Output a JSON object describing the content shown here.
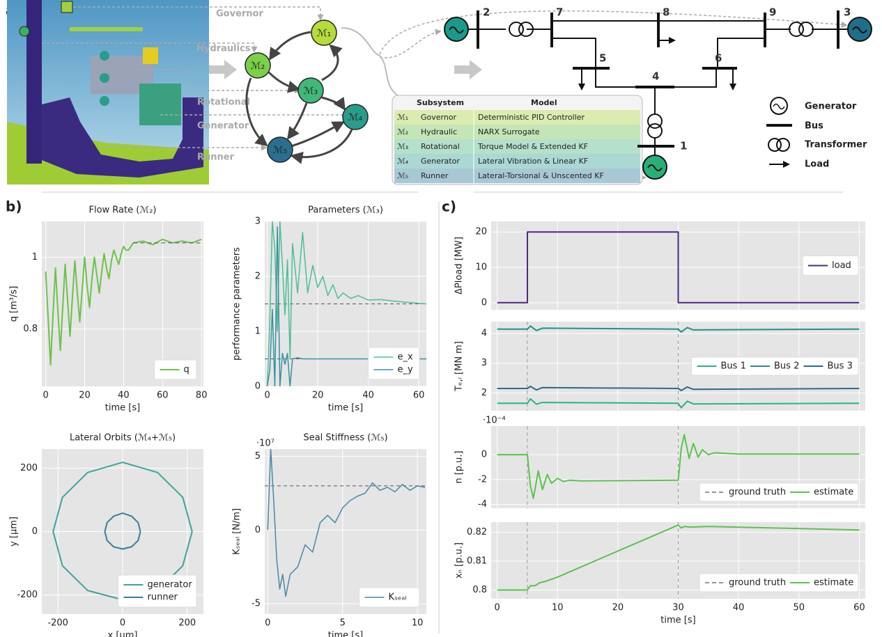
{
  "panel_labels": [
    "a)",
    "b)",
    "c)"
  ],
  "diagram": {
    "subsystem_labels": [
      "Governor",
      "Hydraulics",
      "Rotational",
      "Generator",
      "Runner"
    ],
    "nodes": [
      "ℳ₁",
      "ℳ₂",
      "ℳ₃",
      "ℳ₄",
      "ℳ₅"
    ],
    "table": {
      "header": [
        "Subsystem",
        "Model"
      ],
      "rows": [
        [
          "ℳ₁",
          "Governor",
          "Deterministic PID Controller"
        ],
        [
          "ℳ₂",
          "Hydraulic",
          "NARX Surrogate"
        ],
        [
          "ℳ₃",
          "Rotational",
          "Torque Model & Extended KF"
        ],
        [
          "ℳ₄",
          "Generator",
          "Lateral Vibration & Linear KF"
        ],
        [
          "ℳ₅",
          "Runner",
          "Lateral-Torsional & Unscented KF"
        ]
      ]
    },
    "bus_labels": [
      "1",
      "2",
      "3",
      "4",
      "5",
      "6",
      "7",
      "8",
      "9"
    ],
    "legend": [
      "Generator",
      "Bus",
      "Transformer",
      "Load"
    ]
  },
  "chart_data": [
    {
      "type": "line",
      "title": "Flow Rate (ℳ₂)",
      "xlabel": "time [s]",
      "ylabel": "q [m³/s]",
      "xlim": [
        -2,
        81
      ],
      "ylim": [
        0.64,
        1.1
      ],
      "xticks": [
        0,
        20,
        40,
        60,
        80
      ],
      "yticks": [
        0.8,
        1
      ],
      "grid": true,
      "legend": "lower right",
      "x": [
        0,
        1.25,
        2.5,
        3.75,
        5,
        6.25,
        7.5,
        8.75,
        10,
        11.25,
        12.5,
        13.75,
        15,
        16.25,
        17.5,
        18.75,
        20,
        21.25,
        22.5,
        23.75,
        25,
        26.25,
        27.5,
        28.75,
        30,
        31.25,
        32.5,
        33.75,
        35,
        36.25,
        37.5,
        38.75,
        40,
        41.25,
        42.5,
        43.75,
        45,
        50,
        55,
        60,
        65,
        70,
        75,
        80
      ],
      "series": [
        {
          "name": "q",
          "color": "#6cc24a",
          "width": 2,
          "values": [
            0.96,
            0.83,
            0.7,
            0.84,
            0.97,
            0.85,
            0.74,
            0.86,
            0.98,
            0.88,
            0.78,
            0.89,
            0.99,
            0.9,
            0.82,
            0.91,
            1.0,
            0.92,
            0.86,
            0.94,
            1.0,
            0.95,
            0.9,
            0.96,
            1.01,
            0.97,
            0.94,
            0.99,
            1.02,
            1.0,
            0.98,
            1.01,
            1.03,
            1.02,
            1.02,
            1.03,
            1.04,
            1.045,
            1.035,
            1.05,
            1.04,
            1.045,
            1.04,
            1.05
          ]
        },
        {
          "color": "#555555",
          "dashed": true,
          "width": 1,
          "values": [
            null,
            null,
            null,
            null,
            null,
            null,
            null,
            null,
            null,
            null,
            null,
            null,
            null,
            null,
            null,
            null,
            null,
            null,
            null,
            null,
            null,
            null,
            null,
            null,
            null,
            null,
            null,
            null,
            null,
            null,
            null,
            null,
            null,
            null,
            null,
            null,
            1.04,
            1.04,
            1.04,
            1.04,
            1.04,
            1.04,
            1.04,
            1.04
          ]
        }
      ]
    },
    {
      "type": "line",
      "title": "Parameters (ℳ₃)",
      "xlabel": "time [s]",
      "ylabel": "performance parameters",
      "xlim": [
        -1,
        63
      ],
      "ylim": [
        0,
        3
      ],
      "xticks": [
        0,
        20,
        40,
        60
      ],
      "yticks": [
        0,
        1,
        2,
        3
      ],
      "grid": true,
      "legend": "lower right",
      "reference_lines": [
        1.5,
        0.5
      ],
      "series": [
        {
          "name": "e_x",
          "color": "#4cbf95",
          "width": 1.5,
          "x": [
            0,
            1,
            2,
            3,
            4,
            5,
            6,
            7,
            8,
            9,
            10,
            12,
            14,
            16,
            18,
            20,
            22,
            24,
            26,
            28,
            30,
            33,
            36,
            40,
            45,
            50,
            55,
            60,
            63
          ],
          "values": [
            0,
            1.2,
            3,
            2.5,
            1,
            3,
            2.2,
            1.3,
            2.3,
            0.5,
            2.6,
            1.7,
            2.8,
            1.7,
            2.2,
            1.8,
            2.0,
            1.65,
            1.85,
            1.6,
            1.7,
            1.6,
            1.65,
            1.57,
            1.58,
            1.55,
            1.53,
            1.51,
            1.5
          ]
        },
        {
          "name": "e_y",
          "color": "#3a8fa0",
          "width": 1.5,
          "x": [
            0,
            1,
            2,
            3,
            4,
            5,
            6,
            7,
            8,
            9,
            10,
            12,
            14,
            20,
            30,
            40,
            50,
            63
          ],
          "values": [
            0,
            0.3,
            1.4,
            0,
            2.9,
            0,
            0.6,
            0.4,
            0.6,
            0,
            0.5,
            0.52,
            0.5,
            0.5,
            0.5,
            0.5,
            0.5,
            0.5
          ]
        }
      ]
    },
    {
      "type": "line",
      "title": "Lateral Orbits (ℳ₄+ℳ₅)",
      "xlabel": "x [μm]",
      "ylabel": "y [μm]",
      "xlim": [
        -250,
        250
      ],
      "ylim": [
        -260,
        260
      ],
      "xticks": [
        -200,
        0,
        200
      ],
      "yticks": [
        -200,
        0,
        200
      ],
      "grid": true,
      "legend": "lower right",
      "series": [
        {
          "name": "generator",
          "color": "#3fa39a",
          "width": 2,
          "x": [
            215,
            186,
            108,
            0,
            -108,
            -186,
            -215,
            -186,
            -108,
            0,
            108,
            186,
            215
          ],
          "values": [
            0,
            108,
            186,
            218,
            186,
            108,
            0,
            -108,
            -186,
            -215,
            -186,
            -108,
            0
          ]
        },
        {
          "name": "runner",
          "color": "#3a7d9a",
          "width": 2,
          "x": [
            55,
            48,
            28,
            0,
            -28,
            -48,
            -55,
            -48,
            -28,
            0,
            28,
            48,
            55
          ],
          "values": [
            0,
            28,
            48,
            58,
            48,
            28,
            0,
            -28,
            -48,
            -55,
            -48,
            -28,
            0
          ]
        }
      ]
    },
    {
      "type": "line",
      "title": "Seal Stiffness (ℳ₅)",
      "xlabel": "time [s]",
      "ylabel": "Kₛₑₐₗ [N/m]",
      "multiplier": "·10⁷",
      "xlim": [
        -0.2,
        10.6
      ],
      "ylim": [
        -5.7,
        5.5
      ],
      "xticks": [
        0,
        5,
        10
      ],
      "yticks": [
        -5,
        0,
        5
      ],
      "grid": true,
      "legend": "lower right",
      "reference_lines": [
        3
      ],
      "series": [
        {
          "name": "Kₛₑₐₗ",
          "color": "#4a87a8",
          "width": 1.5,
          "x": [
            0,
            0.2,
            0.4,
            0.6,
            0.8,
            1,
            1.2,
            1.5,
            2,
            2.5,
            3,
            3.5,
            4,
            4.5,
            5,
            5.5,
            6,
            6.5,
            7,
            7.5,
            8,
            8.5,
            9,
            9.5,
            10,
            10.5
          ],
          "values": [
            0,
            5.5,
            2,
            -2,
            -4,
            -3,
            -4.5,
            -3,
            -2.5,
            -1,
            -1.5,
            0.5,
            1,
            0.5,
            1.5,
            2,
            2.3,
            2.5,
            3.2,
            2.7,
            2.9,
            2.6,
            3.1,
            2.7,
            3.0,
            2.9
          ]
        }
      ]
    },
    {
      "type": "line",
      "ylabel": "ΔPload [MW]",
      "xlim": [
        -1,
        61
      ],
      "ylim": [
        -2,
        23
      ],
      "xticks": [
        0,
        10,
        20,
        30,
        40,
        50,
        60
      ],
      "yticks": [
        0,
        10,
        20
      ],
      "grid": true,
      "legend": "center right",
      "series": [
        {
          "name": "load",
          "color": "#4b2a85",
          "width": 2,
          "x": [
            0,
            5,
            5,
            30,
            30,
            60
          ],
          "values": [
            0,
            0,
            20,
            20,
            0,
            0
          ]
        }
      ]
    },
    {
      "type": "line",
      "ylabel": "Tₑ,ᵢ [MN m]",
      "xlim": [
        -1,
        61
      ],
      "ylim": [
        1.4,
        4.4
      ],
      "xticks": [
        0,
        10,
        20,
        30,
        40,
        50,
        60
      ],
      "yticks": [
        2,
        3,
        4
      ],
      "grid": true,
      "legend": "center right",
      "legend_layout": "horizontal",
      "event_lines": [
        5,
        30
      ],
      "x": [
        0,
        5,
        5.5,
        6.5,
        7.5,
        30,
        30.5,
        31.5,
        32.5,
        60
      ],
      "series": [
        {
          "name": "Bus 1",
          "color": "#2fb27d",
          "width": 2,
          "values": [
            1.65,
            1.65,
            1.8,
            1.62,
            1.68,
            1.65,
            1.5,
            1.72,
            1.63,
            1.65
          ]
        },
        {
          "name": "Bus 2",
          "color": "#21918c",
          "width": 2,
          "values": [
            4.15,
            4.15,
            4.25,
            4.1,
            4.18,
            4.15,
            4.05,
            4.2,
            4.12,
            4.15
          ]
        },
        {
          "name": "Bus 3",
          "color": "#2c6a8e",
          "width": 2,
          "values": [
            2.15,
            2.15,
            2.22,
            2.1,
            2.18,
            2.15,
            2.08,
            2.2,
            2.12,
            2.15
          ]
        }
      ]
    },
    {
      "type": "line",
      "ylabel": "n [p.u.]",
      "multiplier": "·10⁻⁴",
      "xlim": [
        -1,
        61
      ],
      "ylim": [
        -4.3,
        2.3
      ],
      "xticks": [
        0,
        10,
        20,
        30,
        40,
        50,
        60
      ],
      "yticks": [
        -4,
        -2,
        0
      ],
      "grid": true,
      "legend": "lower right",
      "legend_layout": "horizontal",
      "event_lines": [
        5,
        30
      ],
      "x": [
        0,
        5,
        5.5,
        6,
        6.8,
        7.5,
        8.3,
        9,
        10,
        11,
        12,
        14,
        30,
        30.5,
        31,
        31.8,
        32.5,
        33.3,
        34,
        35,
        36,
        40,
        60
      ],
      "series": [
        {
          "name": "ground truth",
          "color": "#555555",
          "dashed": true,
          "width": 1.2,
          "values": [
            0,
            0,
            -2.5,
            -3.5,
            -1.3,
            -2.8,
            -1.6,
            -2.3,
            -1.9,
            -2.15,
            -2.05,
            -2.1,
            -2.05,
            0.5,
            1.6,
            -0.3,
            0.9,
            -0.2,
            0.4,
            0,
            0.15,
            0.05,
            0.05
          ]
        },
        {
          "name": "estimate",
          "color": "#5cc24f",
          "width": 2,
          "values": [
            0,
            0,
            -2.5,
            -3.5,
            -1.3,
            -2.8,
            -1.6,
            -2.3,
            -1.9,
            -2.15,
            -2.05,
            -2.1,
            -2.05,
            0.5,
            1.6,
            -0.3,
            0.9,
            -0.2,
            0.4,
            0,
            0.15,
            0.05,
            0.05
          ]
        }
      ]
    },
    {
      "type": "line",
      "xlabel": "time [s]",
      "ylabel": "xₙ [p.u.]",
      "xlim": [
        -1,
        61
      ],
      "ylim": [
        0.797,
        0.8235
      ],
      "xticks": [
        0,
        10,
        20,
        30,
        40,
        50,
        60
      ],
      "yticks": [
        0.8,
        0.81,
        0.82
      ],
      "grid": true,
      "legend": "lower right",
      "legend_layout": "horizontal",
      "event_lines": [
        5,
        30
      ],
      "x": [
        0,
        5,
        5.5,
        6.3,
        7,
        8,
        10,
        30,
        30.5,
        31,
        32,
        35,
        60
      ],
      "series": [
        {
          "name": "ground truth",
          "color": "#555555",
          "dashed": true,
          "width": 1.2,
          "values": [
            0.8,
            0.8,
            0.8015,
            0.8015,
            0.8025,
            0.803,
            0.8045,
            0.8225,
            0.8215,
            0.822,
            0.8218,
            0.822,
            0.8208
          ]
        },
        {
          "name": "estimate",
          "color": "#5cc24f",
          "width": 2,
          "values": [
            0.8,
            0.8,
            0.8015,
            0.8015,
            0.8025,
            0.803,
            0.8045,
            0.8225,
            0.8215,
            0.822,
            0.8218,
            0.822,
            0.8208
          ]
        }
      ]
    }
  ]
}
